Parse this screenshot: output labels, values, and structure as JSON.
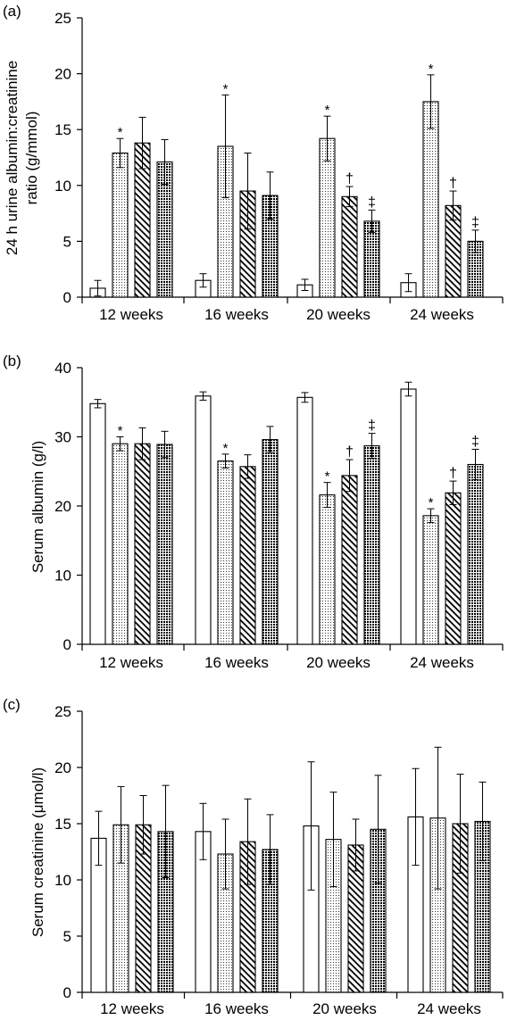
{
  "chart_data": [
    {
      "panel_label": "(a)",
      "type": "bar",
      "ylabel_lines": [
        "24 h urine albumin:creatinine",
        "ratio (g/mmol)"
      ],
      "ylim": [
        0,
        25
      ],
      "yticks": [
        "0",
        "5",
        "10",
        "15",
        "20",
        "25"
      ],
      "categories": [
        "12 weeks",
        "16 weeks",
        "20 weeks",
        "24 weeks"
      ],
      "grid": false,
      "series": [
        {
          "values": [
            0.8,
            1.5,
            1.1,
            1.3
          ],
          "errors": [
            0.7,
            0.6,
            0.5,
            0.8
          ],
          "annotations": [
            "",
            "",
            "",
            ""
          ]
        },
        {
          "values": [
            12.9,
            13.5,
            14.2,
            17.5
          ],
          "errors": [
            1.3,
            4.6,
            2.0,
            2.4
          ],
          "annotations": [
            "*",
            "*",
            "*",
            "*"
          ]
        },
        {
          "values": [
            13.8,
            9.5,
            9.0,
            8.2
          ],
          "errors": [
            2.3,
            3.4,
            0.9,
            1.3
          ],
          "annotations": [
            "",
            "",
            "†",
            "†"
          ]
        },
        {
          "values": [
            12.1,
            9.1,
            6.8,
            5.0
          ],
          "errors": [
            2.0,
            2.1,
            1.0,
            1.0
          ],
          "annotations": [
            "",
            "",
            "‡",
            "‡"
          ]
        }
      ]
    },
    {
      "panel_label": "(b)",
      "type": "bar",
      "ylabel_lines": [
        "Serum albumin (g/l)"
      ],
      "ylim": [
        0,
        40
      ],
      "yticks": [
        "0",
        "10",
        "20",
        "30",
        "40"
      ],
      "categories": [
        "12 weeks",
        "16 weeks",
        "20 weeks",
        "24 weeks"
      ],
      "grid": false,
      "series": [
        {
          "values": [
            34.8,
            35.9,
            35.7,
            36.9
          ],
          "errors": [
            0.6,
            0.6,
            0.7,
            1.0
          ],
          "annotations": [
            "",
            "",
            "",
            ""
          ]
        },
        {
          "values": [
            29.0,
            26.5,
            21.6,
            18.6
          ],
          "errors": [
            1.0,
            1.0,
            1.8,
            1.0
          ],
          "annotations": [
            "*",
            "*",
            "*",
            "*"
          ]
        },
        {
          "values": [
            29.0,
            25.7,
            24.4,
            21.9
          ],
          "errors": [
            2.3,
            1.7,
            2.3,
            1.7
          ],
          "annotations": [
            "",
            "",
            "†",
            "†"
          ]
        },
        {
          "values": [
            28.9,
            29.6,
            28.7,
            26.0
          ],
          "errors": [
            1.9,
            1.9,
            1.8,
            2.2
          ],
          "annotations": [
            "",
            "",
            "‡",
            "‡"
          ]
        }
      ]
    },
    {
      "panel_label": "(c)",
      "type": "bar",
      "ylabel_lines": [
        "Serum creatinine (μmol/l)"
      ],
      "ylim": [
        0,
        25
      ],
      "yticks": [
        "0",
        "5",
        "10",
        "15",
        "20",
        "25"
      ],
      "categories": [
        "12 weeks",
        "16 weeks",
        "20 weeks",
        "24 weeks"
      ],
      "grid": false,
      "series": [
        {
          "values": [
            13.7,
            14.3,
            14.8,
            15.6
          ],
          "errors": [
            2.4,
            2.5,
            5.7,
            4.3
          ],
          "annotations": [
            "",
            "",
            "",
            ""
          ]
        },
        {
          "values": [
            14.9,
            12.3,
            13.6,
            15.5
          ],
          "errors": [
            3.4,
            3.1,
            4.2,
            6.3
          ],
          "annotations": [
            "",
            "",
            "",
            ""
          ]
        },
        {
          "values": [
            14.9,
            13.4,
            13.1,
            15.0
          ],
          "errors": [
            2.6,
            3.8,
            2.3,
            4.4
          ],
          "annotations": [
            "",
            "",
            "",
            ""
          ]
        },
        {
          "values": [
            14.3,
            12.7,
            14.5,
            15.2
          ],
          "errors": [
            4.1,
            3.1,
            4.8,
            3.5
          ],
          "annotations": [
            "",
            "",
            "",
            ""
          ]
        }
      ]
    }
  ]
}
